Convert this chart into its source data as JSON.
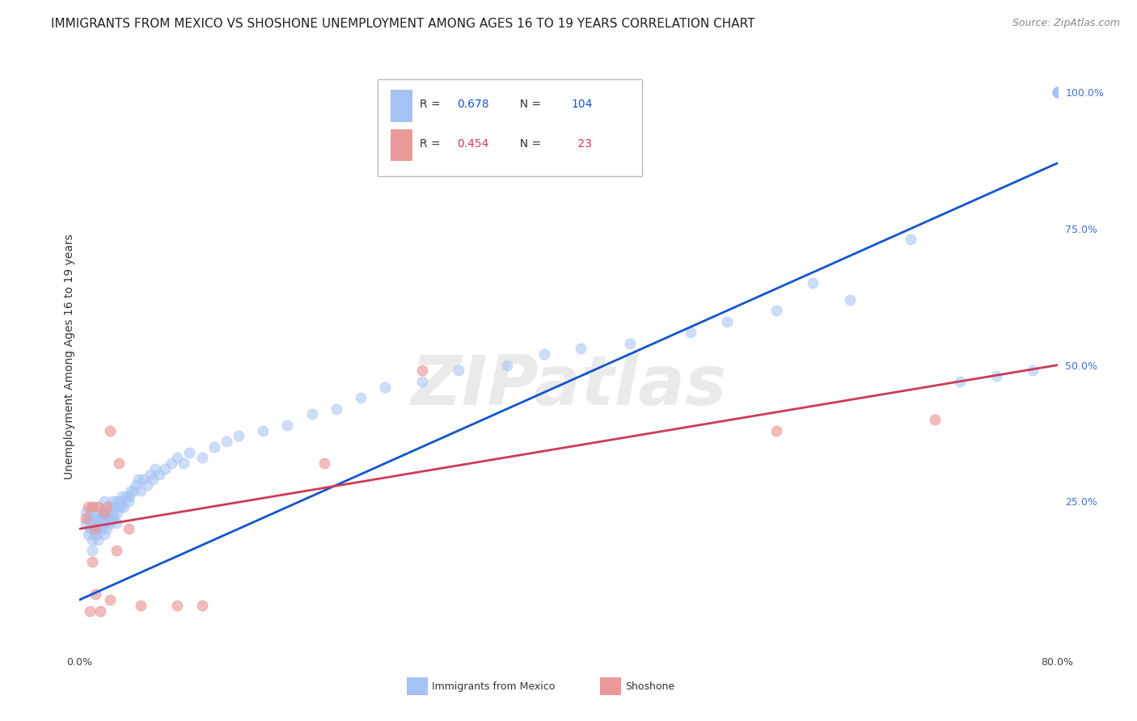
{
  "title": "IMMIGRANTS FROM MEXICO VS SHOSHONE UNEMPLOYMENT AMONG AGES 16 TO 19 YEARS CORRELATION CHART",
  "source": "Source: ZipAtlas.com",
  "ylabel": "Unemployment Among Ages 16 to 19 years",
  "xlim": [
    0.0,
    0.8
  ],
  "ylim": [
    -0.02,
    1.05
  ],
  "yticks_right": [
    0.0,
    0.25,
    0.5,
    0.75,
    1.0
  ],
  "ytick_right_labels": [
    "",
    "25.0%",
    "50.0%",
    "75.0%",
    "100.0%"
  ],
  "blue_R": 0.678,
  "blue_N": 104,
  "pink_R": 0.454,
  "pink_N": 23,
  "blue_color": "#a4c2f4",
  "pink_color": "#ea9999",
  "blue_line_color": "#1155cc",
  "pink_line_color": "#cc3a58",
  "watermark": "ZIPatlas",
  "blue_scatter_x": [
    0.005,
    0.005,
    0.007,
    0.007,
    0.008,
    0.008,
    0.009,
    0.01,
    0.01,
    0.01,
    0.01,
    0.01,
    0.012,
    0.012,
    0.013,
    0.013,
    0.014,
    0.014,
    0.015,
    0.015,
    0.015,
    0.015,
    0.016,
    0.016,
    0.017,
    0.018,
    0.018,
    0.019,
    0.019,
    0.02,
    0.02,
    0.02,
    0.02,
    0.02,
    0.021,
    0.022,
    0.022,
    0.023,
    0.023,
    0.024,
    0.025,
    0.025,
    0.026,
    0.027,
    0.027,
    0.028,
    0.029,
    0.03,
    0.03,
    0.031,
    0.032,
    0.033,
    0.034,
    0.035,
    0.036,
    0.038,
    0.04,
    0.041,
    0.042,
    0.044,
    0.046,
    0.048,
    0.05,
    0.052,
    0.055,
    0.058,
    0.06,
    0.062,
    0.065,
    0.07,
    0.075,
    0.08,
    0.085,
    0.09,
    0.1,
    0.11,
    0.12,
    0.13,
    0.15,
    0.17,
    0.19,
    0.21,
    0.23,
    0.25,
    0.28,
    0.31,
    0.35,
    0.38,
    0.41,
    0.45,
    0.5,
    0.53,
    0.57,
    0.6,
    0.63,
    0.68,
    0.72,
    0.75,
    0.78,
    0.8,
    0.8,
    0.8,
    0.8,
    0.8
  ],
  "blue_scatter_y": [
    0.21,
    0.23,
    0.19,
    0.22,
    0.2,
    0.23,
    0.21,
    0.16,
    0.18,
    0.2,
    0.22,
    0.24,
    0.19,
    0.21,
    0.2,
    0.22,
    0.19,
    0.21,
    0.18,
    0.2,
    0.22,
    0.24,
    0.2,
    0.22,
    0.21,
    0.2,
    0.22,
    0.21,
    0.23,
    0.19,
    0.21,
    0.22,
    0.23,
    0.25,
    0.21,
    0.2,
    0.23,
    0.22,
    0.24,
    0.22,
    0.21,
    0.24,
    0.22,
    0.23,
    0.25,
    0.22,
    0.24,
    0.21,
    0.25,
    0.23,
    0.24,
    0.25,
    0.24,
    0.26,
    0.24,
    0.26,
    0.25,
    0.26,
    0.27,
    0.27,
    0.28,
    0.29,
    0.27,
    0.29,
    0.28,
    0.3,
    0.29,
    0.31,
    0.3,
    0.31,
    0.32,
    0.33,
    0.32,
    0.34,
    0.33,
    0.35,
    0.36,
    0.37,
    0.38,
    0.39,
    0.41,
    0.42,
    0.44,
    0.46,
    0.47,
    0.49,
    0.5,
    0.52,
    0.53,
    0.54,
    0.56,
    0.58,
    0.6,
    0.65,
    0.62,
    0.73,
    0.47,
    0.48,
    0.49,
    1.0,
    1.0,
    1.0,
    1.0,
    1.0
  ],
  "pink_scatter_x": [
    0.005,
    0.007,
    0.008,
    0.01,
    0.01,
    0.012,
    0.013,
    0.015,
    0.017,
    0.02,
    0.022,
    0.025,
    0.025,
    0.03,
    0.032,
    0.04,
    0.05,
    0.08,
    0.1,
    0.2,
    0.28,
    0.57,
    0.7
  ],
  "pink_scatter_y": [
    0.22,
    0.24,
    0.05,
    0.14,
    0.24,
    0.2,
    0.08,
    0.24,
    0.05,
    0.23,
    0.24,
    0.38,
    0.07,
    0.16,
    0.32,
    0.2,
    0.06,
    0.06,
    0.06,
    0.32,
    0.49,
    0.38,
    0.4
  ],
  "blue_line_x0": 0.0,
  "blue_line_y0": 0.07,
  "blue_line_x1": 0.8,
  "blue_line_y1": 0.87,
  "pink_line_x0": 0.0,
  "pink_line_y0": 0.2,
  "pink_line_x1": 0.8,
  "pink_line_y1": 0.5,
  "background_color": "#ffffff",
  "grid_color": "#cccccc",
  "title_fontsize": 11,
  "axis_label_fontsize": 10,
  "tick_fontsize": 9,
  "source_fontsize": 9
}
